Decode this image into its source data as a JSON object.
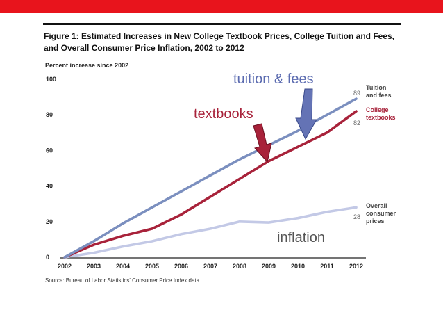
{
  "slide": {
    "figure_title": "Figure 1: Estimated Increases in New College Textbook Prices, College Tuition and Fees, and Overall Consumer Price Inflation, 2002 to 2012",
    "accent_color": "#e8141c"
  },
  "chart_data": {
    "type": "line",
    "ylabel": "Percent increase since 2002",
    "x": [
      2002,
      2003,
      2004,
      2005,
      2006,
      2007,
      2008,
      2009,
      2010,
      2011,
      2012
    ],
    "ylim": [
      0,
      100
    ],
    "yticks": [
      0,
      20,
      40,
      60,
      80,
      100
    ],
    "grid": false,
    "series": [
      {
        "name": "Tuition and fees",
        "color": "#7b8fbf",
        "values": [
          0,
          9,
          19,
          28,
          37,
          46,
          55,
          63,
          71,
          80,
          89
        ]
      },
      {
        "name": "College textbooks",
        "color": "#a8223a",
        "values": [
          0,
          7,
          12,
          16,
          24,
          34,
          44,
          54,
          62,
          70,
          82
        ]
      },
      {
        "name": "Overall consumer prices",
        "color": "#c3c9e6",
        "values": [
          0,
          2.5,
          6,
          9,
          13,
          16,
          20,
          19.5,
          22,
          25.5,
          28
        ]
      }
    ],
    "end_labels": {
      "tuition": "89",
      "textbooks": "82",
      "cpi": "28"
    },
    "annotations": {
      "tuition": "tuition & fees",
      "textbooks": "textbooks",
      "inflation": "inflation"
    },
    "source": "Source: Bureau of Labor Statistics' Consumer Price Index data."
  }
}
